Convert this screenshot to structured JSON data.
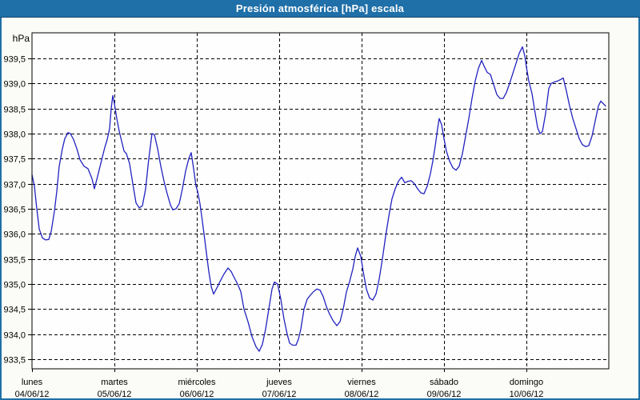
{
  "window": {
    "title": "Presión atmosférica [hPa] escala"
  },
  "chart_data": {
    "type": "line",
    "title": "Presión atmosférica [hPa] escala",
    "unit_label": "hPa",
    "ylabel": "hPa",
    "xlabel": "",
    "grid": "dashed",
    "legend": "none",
    "ylim": [
      933.31,
      940.01
    ],
    "xlim_days": [
      0,
      7
    ],
    "y_ticks": [
      {
        "value": 939.5,
        "label": "939,5"
      },
      {
        "value": 939.0,
        "label": "939,0"
      },
      {
        "value": 938.5,
        "label": "938,5"
      },
      {
        "value": 938.0,
        "label": "938,0"
      },
      {
        "value": 937.5,
        "label": "937,5"
      },
      {
        "value": 937.0,
        "label": "937,0"
      },
      {
        "value": 936.5,
        "label": "936,5"
      },
      {
        "value": 936.0,
        "label": "936,0"
      },
      {
        "value": 935.5,
        "label": "935,5"
      },
      {
        "value": 935.0,
        "label": "935,0"
      },
      {
        "value": 934.5,
        "label": "934,5"
      },
      {
        "value": 934.0,
        "label": "934,0"
      },
      {
        "value": 933.5,
        "label": "933,5"
      }
    ],
    "x_days": [
      {
        "name": "lunes",
        "date": "04/06/12"
      },
      {
        "name": "martes",
        "date": "05/06/12"
      },
      {
        "name": "miércoles",
        "date": "06/06/12"
      },
      {
        "name": "jueves",
        "date": "07/06/12"
      },
      {
        "name": "viernes",
        "date": "08/06/12"
      },
      {
        "name": "sábado",
        "date": "09/06/12"
      },
      {
        "name": "domingo",
        "date": "10/06/12"
      }
    ],
    "colors": {
      "titlebar": "#1f6fa8",
      "window_border": "#1f6fa8",
      "background": "#fbfbf7",
      "plot_background": "#fefefe",
      "gridline": "#000000",
      "axis_text": "#000000",
      "title_text": "#ffffff",
      "line": "#2222c0"
    },
    "series": [
      {
        "name": "Presión atmosférica",
        "color": "#2222c0",
        "points": [
          [
            0.0,
            937.18
          ],
          [
            0.029,
            936.95
          ],
          [
            0.058,
            936.5
          ],
          [
            0.087,
            936.1
          ],
          [
            0.126,
            935.92
          ],
          [
            0.165,
            935.88
          ],
          [
            0.204,
            935.89
          ],
          [
            0.233,
            936.05
          ],
          [
            0.272,
            936.45
          ],
          [
            0.301,
            936.85
          ],
          [
            0.33,
            937.35
          ],
          [
            0.369,
            937.7
          ],
          [
            0.398,
            937.9
          ],
          [
            0.437,
            938.02
          ],
          [
            0.466,
            938.0
          ],
          [
            0.505,
            937.88
          ],
          [
            0.544,
            937.7
          ],
          [
            0.583,
            937.48
          ],
          [
            0.631,
            937.35
          ],
          [
            0.68,
            937.3
          ],
          [
            0.728,
            937.1
          ],
          [
            0.757,
            936.9
          ],
          [
            0.796,
            937.15
          ],
          [
            0.845,
            937.47
          ],
          [
            0.883,
            937.72
          ],
          [
            0.913,
            937.88
          ],
          [
            0.942,
            938.1
          ],
          [
            0.961,
            938.5
          ],
          [
            0.981,
            938.76
          ],
          [
            1.0,
            938.6
          ],
          [
            1.029,
            938.3
          ],
          [
            1.058,
            938.05
          ],
          [
            1.087,
            937.85
          ],
          [
            1.117,
            937.65
          ],
          [
            1.146,
            937.6
          ],
          [
            1.184,
            937.4
          ],
          [
            1.223,
            937.0
          ],
          [
            1.262,
            936.62
          ],
          [
            1.301,
            936.52
          ],
          [
            1.34,
            936.56
          ],
          [
            1.379,
            936.9
          ],
          [
            1.417,
            937.5
          ],
          [
            1.456,
            938.0
          ],
          [
            1.485,
            937.98
          ],
          [
            1.524,
            937.7
          ],
          [
            1.563,
            937.35
          ],
          [
            1.602,
            937.05
          ],
          [
            1.641,
            936.8
          ],
          [
            1.68,
            936.58
          ],
          [
            1.709,
            936.48
          ],
          [
            1.748,
            936.5
          ],
          [
            1.786,
            936.6
          ],
          [
            1.825,
            936.9
          ],
          [
            1.864,
            937.25
          ],
          [
            1.903,
            937.5
          ],
          [
            1.932,
            937.62
          ],
          [
            1.961,
            937.3
          ],
          [
            1.99,
            936.95
          ],
          [
            2.01,
            936.85
          ],
          [
            2.039,
            936.6
          ],
          [
            2.068,
            936.25
          ],
          [
            2.107,
            935.75
          ],
          [
            2.146,
            935.25
          ],
          [
            2.175,
            934.95
          ],
          [
            2.204,
            934.8
          ],
          [
            2.243,
            934.92
          ],
          [
            2.282,
            935.05
          ],
          [
            2.33,
            935.2
          ],
          [
            2.379,
            935.32
          ],
          [
            2.417,
            935.25
          ],
          [
            2.456,
            935.12
          ],
          [
            2.495,
            935.0
          ],
          [
            2.534,
            934.85
          ],
          [
            2.573,
            934.5
          ],
          [
            2.621,
            934.25
          ],
          [
            2.67,
            933.95
          ],
          [
            2.718,
            933.75
          ],
          [
            2.757,
            933.66
          ],
          [
            2.796,
            933.8
          ],
          [
            2.835,
            934.1
          ],
          [
            2.874,
            934.5
          ],
          [
            2.913,
            934.9
          ],
          [
            2.942,
            935.04
          ],
          [
            2.981,
            935.0
          ],
          [
            3.019,
            934.7
          ],
          [
            3.058,
            934.3
          ],
          [
            3.097,
            934.0
          ],
          [
            3.126,
            933.82
          ],
          [
            3.165,
            933.78
          ],
          [
            3.204,
            933.78
          ],
          [
            3.233,
            933.9
          ],
          [
            3.262,
            934.1
          ],
          [
            3.301,
            934.5
          ],
          [
            3.34,
            934.7
          ],
          [
            3.379,
            934.78
          ],
          [
            3.417,
            934.85
          ],
          [
            3.456,
            934.9
          ],
          [
            3.495,
            934.88
          ],
          [
            3.534,
            934.75
          ],
          [
            3.573,
            934.55
          ],
          [
            3.612,
            934.4
          ],
          [
            3.65,
            934.28
          ],
          [
            3.699,
            934.17
          ],
          [
            3.738,
            934.25
          ],
          [
            3.777,
            934.5
          ],
          [
            3.816,
            934.84
          ],
          [
            3.854,
            935.05
          ],
          [
            3.893,
            935.3
          ],
          [
            3.922,
            935.55
          ],
          [
            3.951,
            935.72
          ],
          [
            3.99,
            935.55
          ],
          [
            4.019,
            935.25
          ],
          [
            4.058,
            934.9
          ],
          [
            4.097,
            934.72
          ],
          [
            4.136,
            934.68
          ],
          [
            4.175,
            934.8
          ],
          [
            4.214,
            935.1
          ],
          [
            4.252,
            935.5
          ],
          [
            4.291,
            935.95
          ],
          [
            4.33,
            936.35
          ],
          [
            4.369,
            936.7
          ],
          [
            4.408,
            936.9
          ],
          [
            4.447,
            937.05
          ],
          [
            4.485,
            937.13
          ],
          [
            4.524,
            937.02
          ],
          [
            4.563,
            937.05
          ],
          [
            4.602,
            937.06
          ],
          [
            4.641,
            937.0
          ],
          [
            4.68,
            936.9
          ],
          [
            4.718,
            936.82
          ],
          [
            4.757,
            936.8
          ],
          [
            4.796,
            936.95
          ],
          [
            4.835,
            937.2
          ],
          [
            4.864,
            937.45
          ],
          [
            4.893,
            937.75
          ],
          [
            4.922,
            938.1
          ],
          [
            4.942,
            938.3
          ],
          [
            4.971,
            938.18
          ],
          [
            5.0,
            937.9
          ],
          [
            5.029,
            937.65
          ],
          [
            5.068,
            937.45
          ],
          [
            5.107,
            937.32
          ],
          [
            5.146,
            937.27
          ],
          [
            5.184,
            937.35
          ],
          [
            5.223,
            937.6
          ],
          [
            5.262,
            937.95
          ],
          [
            5.301,
            938.3
          ],
          [
            5.34,
            938.7
          ],
          [
            5.379,
            939.05
          ],
          [
            5.417,
            939.3
          ],
          [
            5.456,
            939.46
          ],
          [
            5.485,
            939.35
          ],
          [
            5.524,
            939.22
          ],
          [
            5.563,
            939.18
          ],
          [
            5.602,
            938.98
          ],
          [
            5.641,
            938.78
          ],
          [
            5.68,
            938.7
          ],
          [
            5.718,
            938.7
          ],
          [
            5.757,
            938.82
          ],
          [
            5.796,
            939.0
          ],
          [
            5.835,
            939.2
          ],
          [
            5.874,
            939.4
          ],
          [
            5.913,
            939.6
          ],
          [
            5.951,
            939.73
          ],
          [
            5.981,
            939.55
          ],
          [
            6.0,
            939.33
          ],
          [
            6.029,
            939.05
          ],
          [
            6.068,
            938.8
          ],
          [
            6.097,
            938.5
          ],
          [
            6.136,
            938.12
          ],
          [
            6.165,
            938.0
          ],
          [
            6.194,
            938.04
          ],
          [
            6.233,
            938.4
          ],
          [
            6.272,
            938.9
          ],
          [
            6.301,
            939.0
          ],
          [
            6.34,
            939.03
          ],
          [
            6.379,
            939.05
          ],
          [
            6.417,
            939.08
          ],
          [
            6.447,
            939.11
          ],
          [
            6.485,
            938.85
          ],
          [
            6.524,
            938.55
          ],
          [
            6.563,
            938.3
          ],
          [
            6.602,
            938.1
          ],
          [
            6.641,
            937.9
          ],
          [
            6.68,
            937.78
          ],
          [
            6.718,
            937.74
          ],
          [
            6.757,
            937.76
          ],
          [
            6.796,
            937.95
          ],
          [
            6.835,
            938.25
          ],
          [
            6.874,
            938.55
          ],
          [
            6.903,
            938.65
          ],
          [
            6.932,
            938.6
          ],
          [
            6.961,
            938.55
          ]
        ]
      }
    ]
  }
}
